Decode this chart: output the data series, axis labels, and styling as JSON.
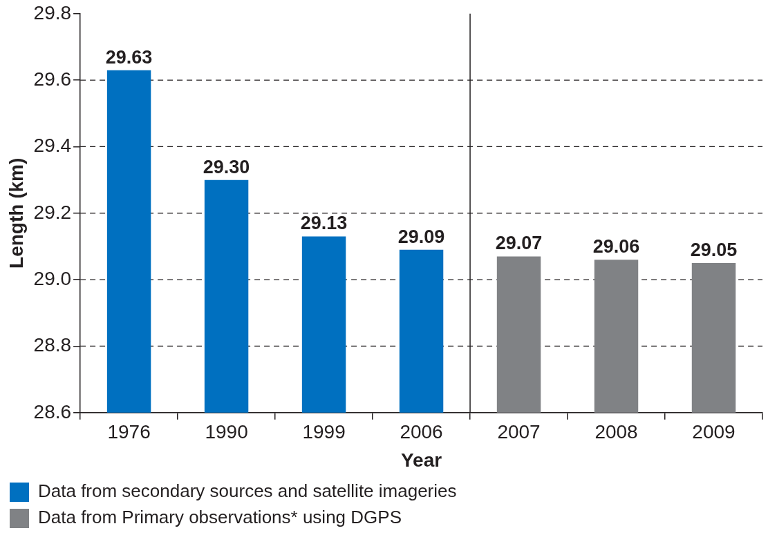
{
  "chart_data": {
    "type": "bar",
    "xlabel": "Year",
    "ylabel": "Length (km)",
    "categories": [
      "1976",
      "1990",
      "1999",
      "2006",
      "2007",
      "2008",
      "2009"
    ],
    "series": [
      {
        "name": "Data from secondary sources and satellite imageries",
        "color": "#0070c0",
        "values": [
          29.63,
          29.3,
          29.13,
          29.09,
          null,
          null,
          null
        ],
        "value_labels": [
          "29.63",
          "29.30",
          "29.13",
          "29.09",
          null,
          null,
          null
        ]
      },
      {
        "name": "Data from Primary observations* using DGPS",
        "color": "#808285",
        "values": [
          null,
          null,
          null,
          null,
          29.07,
          29.06,
          29.05
        ],
        "value_labels": [
          null,
          null,
          null,
          null,
          "29.07",
          "29.06",
          "29.05"
        ]
      }
    ],
    "ylim": [
      28.6,
      29.8
    ],
    "yticks": [
      28.6,
      28.8,
      {
        "value": 29,
        "label": "29.0"
      },
      29.2,
      29.4,
      29.6,
      29.8
    ],
    "ref_lines": [
      {
        "axis": "x",
        "value": "2007",
        "label": null
      }
    ],
    "grid": "y",
    "legend": "bottom"
  }
}
